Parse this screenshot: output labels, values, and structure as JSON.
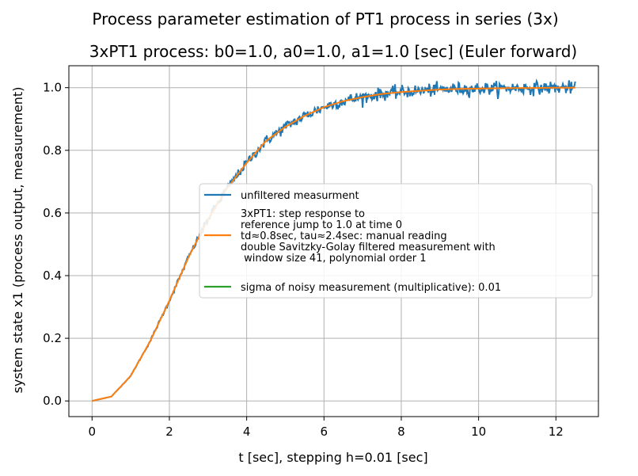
{
  "suptitle": "Process parameter estimation of PT1 process in series (3x)",
  "chart_data": {
    "type": "line",
    "title": "3xPT1 process: b0=1.0, a0=1.0, a1=1.0 [sec] (Euler forward)",
    "xlabel": "t [sec], stepping h=0.01 [sec]",
    "ylabel": "system state x1 (process output, measurement)",
    "xlim": [
      -0.6,
      13.1
    ],
    "ylim": [
      -0.05,
      1.07
    ],
    "xticks": [
      0,
      2,
      4,
      6,
      8,
      10,
      12
    ],
    "yticks": [
      0.0,
      0.2,
      0.4,
      0.6,
      0.8,
      1.0
    ],
    "xtick_labels": [
      "0",
      "2",
      "4",
      "6",
      "8",
      "10",
      "12"
    ],
    "ytick_labels": [
      "0.0",
      "0.2",
      "0.4",
      "0.6",
      "0.8",
      "1.0"
    ],
    "grid": true,
    "legend_position": "center-right",
    "series": [
      {
        "name": "unfiltered measurment",
        "color": "#1f77b4",
        "x": [
          0,
          0.5,
          1,
          1.5,
          2,
          2.5,
          3,
          3.5,
          4,
          4.5,
          5,
          5.5,
          6,
          6.5,
          7,
          7.5,
          8,
          8.5,
          9,
          9.5,
          10,
          10.5,
          11,
          11.5,
          12,
          12.5
        ],
        "y": [
          0,
          0.014,
          0.08,
          0.19,
          0.32,
          0.46,
          0.58,
          0.68,
          0.76,
          0.83,
          0.875,
          0.91,
          0.938,
          0.957,
          0.97,
          0.98,
          0.986,
          0.99,
          0.994,
          0.996,
          0.997,
          0.998,
          0.999,
          0.999,
          1.0,
          1.0
        ],
        "noise_sigma": 0.01
      },
      {
        "name": "3xPT1: step response to\nreference jump to 1.0 at time 0\ntd≈0.8sec, tau≈2.4sec: manual reading\ndouble Savitzky-Golay filtered measurement with\n  window size 41, polynomial order 1",
        "color": "#ff7f0e",
        "x": [
          0,
          0.5,
          1,
          1.5,
          2,
          2.5,
          3,
          3.5,
          4,
          4.5,
          5,
          5.5,
          6,
          6.5,
          7,
          7.5,
          8,
          8.5,
          9,
          9.5,
          10,
          10.5,
          11,
          11.5,
          12,
          12.5
        ],
        "y": [
          0,
          0.014,
          0.08,
          0.19,
          0.32,
          0.46,
          0.58,
          0.68,
          0.76,
          0.83,
          0.875,
          0.91,
          0.938,
          0.957,
          0.97,
          0.98,
          0.986,
          0.99,
          0.994,
          0.996,
          0.997,
          0.998,
          0.999,
          0.999,
          1.0,
          1.0
        ]
      },
      {
        "name": "sigma of noisy measurement (multiplicative): 0.01",
        "color": "#2ca02c",
        "x": [],
        "y": []
      }
    ]
  }
}
